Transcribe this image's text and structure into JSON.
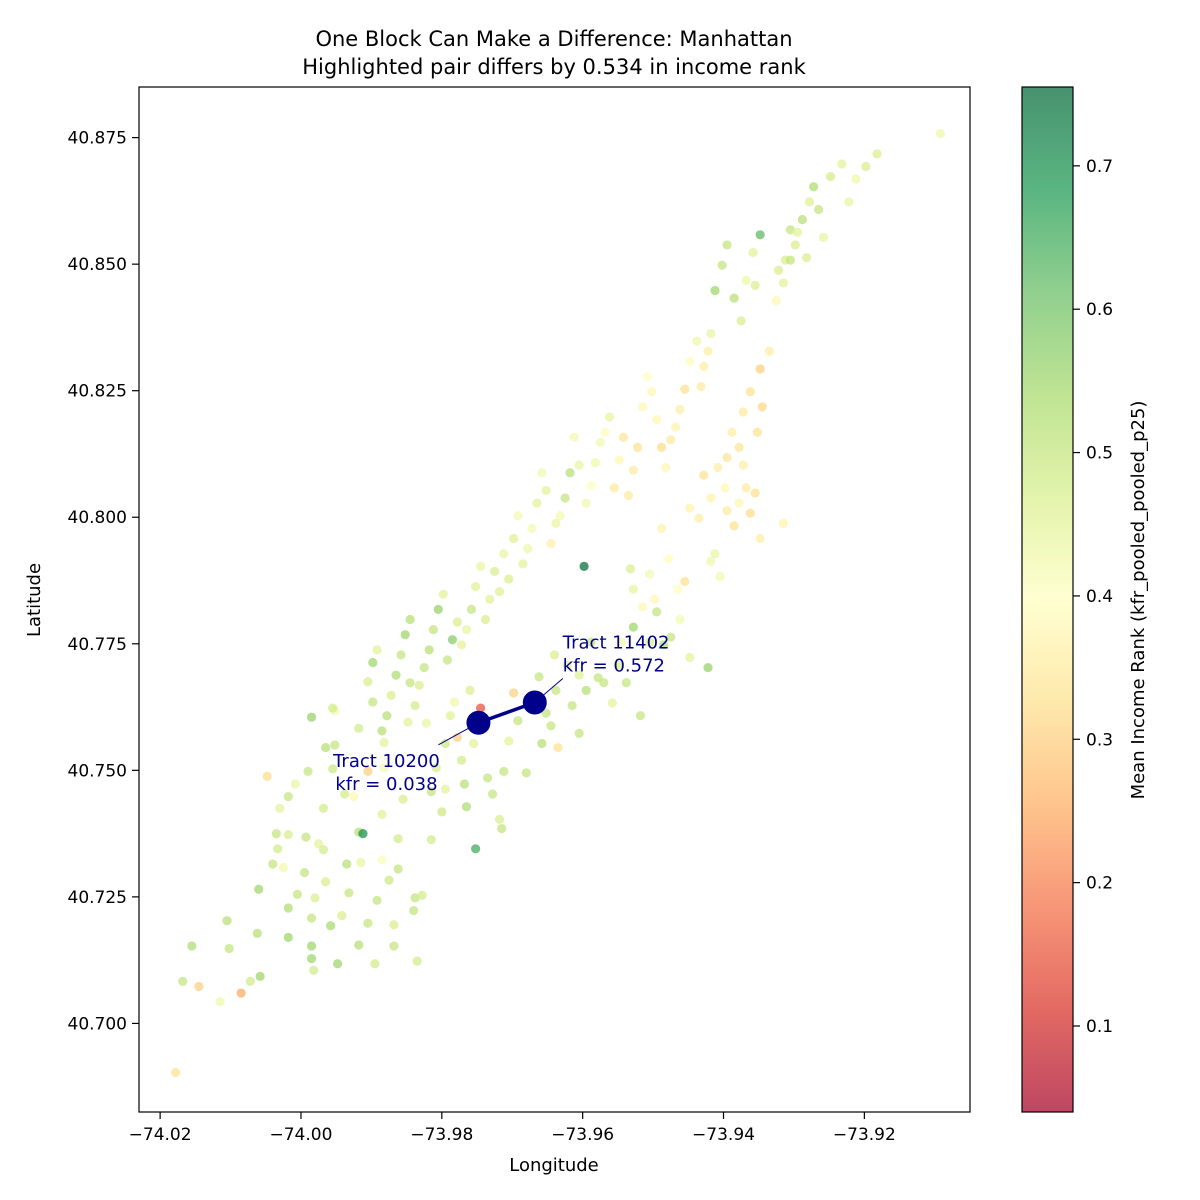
{
  "chart_data": {
    "type": "scatter",
    "title": "One Block Can Make a Difference: Manhattan",
    "subtitle": "Highlighted pair differs by 0.534 in income rank",
    "xlabel": "Longitude",
    "ylabel": "Latitude",
    "xlim": [
      -74.023,
      -73.905
    ],
    "ylim": [
      40.6825,
      40.885
    ],
    "xticks": [
      -74.02,
      -74.0,
      -73.98,
      -73.96,
      -73.94,
      -73.92
    ],
    "xtick_labels": [
      "−74.02",
      "−74.00",
      "−73.98",
      "−73.96",
      "−73.94",
      "−73.92"
    ],
    "yticks": [
      40.7,
      40.725,
      40.75,
      40.775,
      40.8,
      40.825,
      40.85,
      40.875
    ],
    "ytick_labels": [
      "40.700",
      "40.725",
      "40.750",
      "40.775",
      "40.800",
      "40.825",
      "40.850",
      "40.875"
    ],
    "grid": false,
    "colormap": "RdYlGn",
    "colormap_stops": [
      "#a50026",
      "#d73027",
      "#f46d43",
      "#fdae61",
      "#fee08b",
      "#ffffbf",
      "#d9ef8b",
      "#a6d96a",
      "#66bd63",
      "#1a9850",
      "#006837"
    ],
    "colorbar": {
      "label": "Mean Income Rank (kfr_pooled_pooled_p25)",
      "range": [
        0.04,
        0.755
      ],
      "ticks": [
        0.1,
        0.2,
        0.3,
        0.4,
        0.5,
        0.6,
        0.7
      ],
      "tick_labels": [
        "0.1",
        "0.2",
        "0.3",
        "0.4",
        "0.5",
        "0.6",
        "0.7"
      ]
    },
    "highlight": {
      "color": "#00008b",
      "tracts": [
        {
          "x": -73.9748,
          "y": 40.7594,
          "label": "Tract 10200",
          "value_label": "kfr = 0.038"
        },
        {
          "x": -73.9668,
          "y": 40.7634,
          "label": "Tract 11402",
          "value_label": "kfr = 0.572"
        }
      ]
    },
    "points": [
      [
        -74.0178,
        40.6903,
        0.33
      ],
      [
        -74.0168,
        40.7083,
        0.5
      ],
      [
        -74.0145,
        40.7073,
        0.3
      ],
      [
        -74.0155,
        40.7153,
        0.53
      ],
      [
        -74.0115,
        40.7043,
        0.43
      ],
      [
        -74.0105,
        40.7203,
        0.52
      ],
      [
        -74.0102,
        40.7148,
        0.5
      ],
      [
        -74.0085,
        40.706,
        0.25
      ],
      [
        -74.0072,
        40.7083,
        0.48
      ],
      [
        -74.0062,
        40.7178,
        0.52
      ],
      [
        -74.0058,
        40.7093,
        0.55
      ],
      [
        -74.006,
        40.7265,
        0.55
      ],
      [
        -74.0048,
        40.7488,
        0.32
      ],
      [
        -74.0035,
        40.7375,
        0.5
      ],
      [
        -74.004,
        40.7315,
        0.5
      ],
      [
        -74.0033,
        40.7345,
        0.48
      ],
      [
        -74.003,
        40.7425,
        0.45
      ],
      [
        -74.0025,
        40.7308,
        0.42
      ],
      [
        -74.0018,
        40.7448,
        0.5
      ],
      [
        -74.0018,
        40.7373,
        0.47
      ],
      [
        -74.0018,
        40.7228,
        0.53
      ],
      [
        -74.0018,
        40.717,
        0.55
      ],
      [
        -74.0008,
        40.7473,
        0.44
      ],
      [
        -74.0005,
        40.7255,
        0.5
      ],
      [
        -73.9995,
        40.7298,
        0.5
      ],
      [
        -73.9993,
        40.7368,
        0.5
      ],
      [
        -73.9985,
        40.7208,
        0.5
      ],
      [
        -73.9985,
        40.7153,
        0.55
      ],
      [
        -73.9982,
        40.7105,
        0.48
      ],
      [
        -73.9985,
        40.7128,
        0.55
      ],
      [
        -73.9985,
        40.7605,
        0.56
      ],
      [
        -73.999,
        40.7498,
        0.5
      ],
      [
        -73.998,
        40.7248,
        0.47
      ],
      [
        -73.9975,
        40.7355,
        0.45
      ],
      [
        -73.9968,
        40.7425,
        0.48
      ],
      [
        -73.9965,
        40.7545,
        0.52
      ],
      [
        -73.9968,
        40.7343,
        0.48
      ],
      [
        -73.9965,
        40.728,
        0.47
      ],
      [
        -73.9958,
        40.7193,
        0.54
      ],
      [
        -73.9955,
        40.7503,
        0.49
      ],
      [
        -73.9952,
        40.7618,
        0.42
      ],
      [
        -73.9952,
        40.755,
        0.5
      ],
      [
        -73.9948,
        40.7118,
        0.55
      ],
      [
        -73.9942,
        40.7213,
        0.47
      ],
      [
        -73.9938,
        40.7453,
        0.48
      ],
      [
        -73.9935,
        40.7315,
        0.52
      ],
      [
        -73.9932,
        40.7258,
        0.5
      ],
      [
        -73.9925,
        40.7448,
        0.38
      ],
      [
        -73.9918,
        40.7155,
        0.52
      ],
      [
        -73.9918,
        40.7378,
        0.52
      ],
      [
        -73.9915,
        40.7318,
        0.44
      ],
      [
        -73.9912,
        40.7375,
        0.7
      ],
      [
        -73.9905,
        40.7675,
        0.47
      ],
      [
        -73.9905,
        40.7498,
        0.3
      ],
      [
        -73.9905,
        40.7198,
        0.5
      ],
      [
        -73.9898,
        40.7635,
        0.5
      ],
      [
        -73.9892,
        40.7243,
        0.5
      ],
      [
        -73.9895,
        40.7118,
        0.48
      ],
      [
        -73.9885,
        40.7413,
        0.46
      ],
      [
        -73.9885,
        40.7323,
        0.41
      ],
      [
        -73.9882,
        40.7555,
        0.45
      ],
      [
        -73.9882,
        40.7505,
        0.42
      ],
      [
        -73.9875,
        40.7283,
        0.49
      ],
      [
        -73.9868,
        40.7195,
        0.47
      ],
      [
        -73.9868,
        40.7153,
        0.5
      ],
      [
        -73.9862,
        40.7365,
        0.48
      ],
      [
        -73.9862,
        40.7305,
        0.5
      ],
      [
        -73.9855,
        40.7443,
        0.47
      ],
      [
        -73.9848,
        40.7595,
        0.45
      ],
      [
        -73.9845,
        40.7673,
        0.5
      ],
      [
        -73.9835,
        40.7123,
        0.48
      ],
      [
        -73.984,
        40.7223,
        0.5
      ],
      [
        -73.9838,
        40.7248,
        0.5
      ],
      [
        -73.9828,
        40.7253,
        0.48
      ],
      [
        -73.9822,
        40.7593,
        0.44
      ],
      [
        -73.9815,
        40.7458,
        0.5
      ],
      [
        -73.9815,
        40.7363,
        0.48
      ],
      [
        -73.9808,
        40.7505,
        0.47
      ],
      [
        -73.98,
        40.7418,
        0.49
      ],
      [
        -73.9795,
        40.7463,
        0.45
      ],
      [
        -73.9795,
        40.7553,
        0.49
      ],
      [
        -73.9788,
        40.7608,
        0.46
      ],
      [
        -73.9782,
        40.7635,
        0.43
      ],
      [
        -73.9778,
        40.7565,
        0.3
      ],
      [
        -73.9772,
        40.752,
        0.48
      ],
      [
        -73.9768,
        40.7473,
        0.52
      ],
      [
        -73.9765,
        40.7428,
        0.53
      ],
      [
        -73.976,
        40.7658,
        0.47
      ],
      [
        -73.9755,
        40.7553,
        0.45
      ],
      [
        -73.9752,
        40.7345,
        0.65
      ],
      [
        -73.9745,
        40.7623,
        0.15
      ],
      [
        -73.9738,
        40.7585,
        0.44
      ],
      [
        -73.9735,
        40.7485,
        0.5
      ],
      [
        -73.9728,
        40.7453,
        0.5
      ],
      [
        -73.9718,
        40.7403,
        0.47
      ],
      [
        -73.9715,
        40.7385,
        0.5
      ],
      [
        -73.9712,
        40.7498,
        0.5
      ],
      [
        -73.9705,
        40.7558,
        0.45
      ],
      [
        -73.9698,
        40.7653,
        0.3
      ],
      [
        -73.9692,
        40.7598,
        0.5
      ],
      [
        -73.968,
        40.7495,
        0.5
      ],
      [
        -73.9675,
        40.7645,
        0.38
      ],
      [
        -73.9662,
        40.7685,
        0.5
      ],
      [
        -73.9658,
        40.7553,
        0.52
      ],
      [
        -73.9652,
        40.7613,
        0.5
      ],
      [
        -73.9645,
        40.7588,
        0.5
      ],
      [
        -73.964,
        40.7728,
        0.47
      ],
      [
        -73.9638,
        40.7658,
        0.5
      ],
      [
        -73.9635,
        40.7545,
        0.33
      ],
      [
        -73.9622,
        40.7708,
        0.46
      ],
      [
        -73.9615,
        40.7628,
        0.5
      ],
      [
        -73.9605,
        40.7573,
        0.5
      ],
      [
        -73.9605,
        40.7688,
        0.46
      ],
      [
        -73.9595,
        40.7658,
        0.52
      ],
      [
        -73.9588,
        40.7753,
        0.5
      ],
      [
        -73.9578,
        40.7683,
        0.5
      ],
      [
        -73.957,
        40.7673,
        0.5
      ],
      [
        -73.9558,
        40.7633,
        0.45
      ],
      [
        -73.955,
        40.7708,
        0.47
      ],
      [
        -73.9545,
        40.7753,
        0.42
      ],
      [
        -73.9538,
        40.7673,
        0.5
      ],
      [
        -73.9528,
        40.7783,
        0.55
      ],
      [
        -73.9518,
        40.7608,
        0.5
      ],
      [
        -73.9505,
        40.7753,
        0.47
      ],
      [
        -73.9495,
        40.7813,
        0.5
      ],
      [
        -73.9485,
        40.7748,
        0.52
      ],
      [
        -73.9475,
        40.7763,
        0.5
      ],
      [
        -73.9462,
        40.7798,
        0.42
      ],
      [
        -73.9448,
        40.7723,
        0.45
      ],
      [
        -73.9422,
        40.7703,
        0.56
      ],
      [
        -73.9418,
        40.7913,
        0.43
      ],
      [
        -73.9412,
        40.7928,
        0.44
      ],
      [
        -73.9405,
        40.7883,
        0.42
      ],
      [
        -73.9398,
        40.8058,
        0.38
      ],
      [
        -73.9395,
        40.8013,
        0.35
      ],
      [
        -73.9385,
        40.7983,
        0.33
      ],
      [
        -73.9378,
        40.8028,
        0.38
      ],
      [
        -73.9372,
        40.8103,
        0.36
      ],
      [
        -73.9368,
        40.8058,
        0.35
      ],
      [
        -73.9362,
        40.8008,
        0.32
      ],
      [
        -73.9355,
        40.8048,
        0.33
      ],
      [
        -73.9348,
        40.7958,
        0.36
      ],
      [
        -73.9315,
        40.7988,
        0.37
      ],
      [
        -73.9598,
        40.7903,
        0.75
      ],
      [
        -73.9532,
        40.7898,
        0.47
      ],
      [
        -73.9528,
        40.7858,
        0.44
      ],
      [
        -73.9515,
        40.7823,
        0.38
      ],
      [
        -73.9505,
        40.7888,
        0.42
      ],
      [
        -73.9498,
        40.7838,
        0.38
      ],
      [
        -73.9488,
        40.7978,
        0.37
      ],
      [
        -73.9478,
        40.7918,
        0.4
      ],
      [
        -73.9465,
        40.7858,
        0.4
      ],
      [
        -73.9455,
        40.7873,
        0.33
      ],
      [
        -73.9448,
        40.8018,
        0.37
      ],
      [
        -73.9435,
        40.7998,
        0.36
      ],
      [
        -73.9428,
        40.8083,
        0.33
      ],
      [
        -73.9418,
        40.8038,
        0.37
      ],
      [
        -73.9408,
        40.8098,
        0.36
      ],
      [
        -73.9395,
        40.8118,
        0.34
      ],
      [
        -73.9388,
        40.8168,
        0.36
      ],
      [
        -73.9378,
        40.8138,
        0.34
      ],
      [
        -73.9372,
        40.8208,
        0.35
      ],
      [
        -73.9362,
        40.8248,
        0.33
      ],
      [
        -73.9352,
        40.8168,
        0.33
      ],
      [
        -73.9345,
        40.8218,
        0.31
      ],
      [
        -73.9348,
        40.8293,
        0.3
      ],
      [
        -73.9335,
        40.8328,
        0.36
      ],
      [
        -73.9325,
        40.8428,
        0.38
      ],
      [
        -73.9315,
        40.8463,
        0.45
      ],
      [
        -73.9322,
        40.8488,
        0.47
      ],
      [
        -73.9312,
        40.8508,
        0.47
      ],
      [
        -73.9305,
        40.8568,
        0.5
      ],
      [
        -73.9298,
        40.8538,
        0.47
      ],
      [
        -73.9288,
        40.8588,
        0.52
      ],
      [
        -73.9278,
        40.8623,
        0.46
      ],
      [
        -73.9272,
        40.8653,
        0.53
      ],
      [
        -73.9265,
        40.8608,
        0.5
      ],
      [
        -73.9258,
        40.8553,
        0.44
      ],
      [
        -73.9248,
        40.8673,
        0.48
      ],
      [
        -73.9232,
        40.8698,
        0.45
      ],
      [
        -73.9222,
        40.8623,
        0.44
      ],
      [
        -73.9212,
        40.8668,
        0.43
      ],
      [
        -73.9198,
        40.8693,
        0.47
      ],
      [
        -73.9182,
        40.8718,
        0.47
      ],
      [
        -73.9092,
        40.8758,
        0.43
      ],
      [
        -73.9305,
        40.8508,
        0.5
      ],
      [
        -73.9295,
        40.8563,
        0.45
      ],
      [
        -73.9282,
        40.8513,
        0.47
      ],
      [
        -73.9348,
        40.8558,
        0.62
      ],
      [
        -73.9355,
        40.8458,
        0.47
      ],
      [
        -73.9358,
        40.8523,
        0.45
      ],
      [
        -73.9368,
        40.8468,
        0.43
      ],
      [
        -73.9375,
        40.8388,
        0.47
      ],
      [
        -73.9385,
        40.8433,
        0.52
      ],
      [
        -73.9395,
        40.8538,
        0.5
      ],
      [
        -73.9402,
        40.8498,
        0.5
      ],
      [
        -73.9412,
        40.8448,
        0.55
      ],
      [
        -73.9418,
        40.8363,
        0.44
      ],
      [
        -73.9422,
        40.8328,
        0.36
      ],
      [
        -73.9428,
        40.8298,
        0.36
      ],
      [
        -73.9432,
        40.8258,
        0.35
      ],
      [
        -73.9438,
        40.8348,
        0.43
      ],
      [
        -73.9448,
        40.8308,
        0.39
      ],
      [
        -73.9455,
        40.8253,
        0.33
      ],
      [
        -73.9462,
        40.8213,
        0.36
      ],
      [
        -73.9468,
        40.8178,
        0.37
      ],
      [
        -73.9475,
        40.8153,
        0.35
      ],
      [
        -73.9482,
        40.8098,
        0.38
      ],
      [
        -73.9488,
        40.8138,
        0.32
      ],
      [
        -73.9495,
        40.8193,
        0.38
      ],
      [
        -73.9502,
        40.8248,
        0.38
      ],
      [
        -73.9508,
        40.8278,
        0.4
      ],
      [
        -73.9515,
        40.8218,
        0.38
      ],
      [
        -73.9522,
        40.8138,
        0.33
      ],
      [
        -73.9528,
        40.8093,
        0.35
      ],
      [
        -73.9535,
        40.8043,
        0.35
      ],
      [
        -73.9542,
        40.8158,
        0.34
      ],
      [
        -73.9548,
        40.8113,
        0.38
      ],
      [
        -73.9555,
        40.8058,
        0.35
      ],
      [
        -73.9562,
        40.8198,
        0.44
      ],
      [
        -73.9568,
        40.8168,
        0.39
      ],
      [
        -73.9575,
        40.8148,
        0.42
      ],
      [
        -73.9582,
        40.8108,
        0.43
      ],
      [
        -73.9588,
        40.8063,
        0.4
      ],
      [
        -73.9595,
        40.8028,
        0.42
      ],
      [
        -73.9605,
        40.8103,
        0.44
      ],
      [
        -73.9612,
        40.8158,
        0.42
      ],
      [
        -73.9618,
        40.8088,
        0.52
      ],
      [
        -73.9625,
        40.8038,
        0.5
      ],
      [
        -73.9632,
        40.8003,
        0.42
      ],
      [
        -73.9638,
        40.7988,
        0.44
      ],
      [
        -73.9645,
        40.7948,
        0.36
      ],
      [
        -73.9652,
        40.8053,
        0.45
      ],
      [
        -73.9658,
        40.8088,
        0.42
      ],
      [
        -73.9665,
        40.8028,
        0.45
      ],
      [
        -73.9672,
        40.7978,
        0.42
      ],
      [
        -73.9678,
        40.7938,
        0.43
      ],
      [
        -73.9685,
        40.7908,
        0.45
      ],
      [
        -73.9692,
        40.8003,
        0.42
      ],
      [
        -73.9698,
        40.7958,
        0.46
      ],
      [
        -73.9705,
        40.7878,
        0.47
      ],
      [
        -73.9712,
        40.7928,
        0.44
      ],
      [
        -73.9718,
        40.7853,
        0.46
      ],
      [
        -73.9725,
        40.7893,
        0.47
      ],
      [
        -73.9732,
        40.7838,
        0.45
      ],
      [
        -73.9738,
        40.7798,
        0.47
      ],
      [
        -73.9745,
        40.7903,
        0.44
      ],
      [
        -73.9752,
        40.7863,
        0.46
      ],
      [
        -73.9758,
        40.7818,
        0.5
      ],
      [
        -73.9765,
        40.7778,
        0.44
      ],
      [
        -73.9772,
        40.7748,
        0.45
      ],
      [
        -73.9778,
        40.7793,
        0.47
      ],
      [
        -73.9785,
        40.7758,
        0.58
      ],
      [
        -73.9792,
        40.7718,
        0.5
      ],
      [
        -73.9798,
        40.7848,
        0.45
      ],
      [
        -73.9805,
        40.7818,
        0.56
      ],
      [
        -73.9812,
        40.7778,
        0.5
      ],
      [
        -73.9818,
        40.7738,
        0.52
      ],
      [
        -73.9825,
        40.7703,
        0.5
      ],
      [
        -73.9832,
        40.7668,
        0.47
      ],
      [
        -73.9838,
        40.7628,
        0.48
      ],
      [
        -73.9845,
        40.7798,
        0.52
      ],
      [
        -73.9852,
        40.7768,
        0.55
      ],
      [
        -73.9858,
        40.7728,
        0.5
      ],
      [
        -73.9865,
        40.7688,
        0.53
      ],
      [
        -73.9872,
        40.7648,
        0.47
      ],
      [
        -73.9878,
        40.7608,
        0.52
      ],
      [
        -73.9885,
        40.7578,
        0.52
      ],
      [
        -73.9892,
        40.7738,
        0.45
      ],
      [
        -73.9898,
        40.7713,
        0.55
      ],
      [
        -73.9955,
        40.7623,
        0.48
      ],
      [
        -73.9918,
        40.7583,
        0.48
      ]
    ]
  }
}
